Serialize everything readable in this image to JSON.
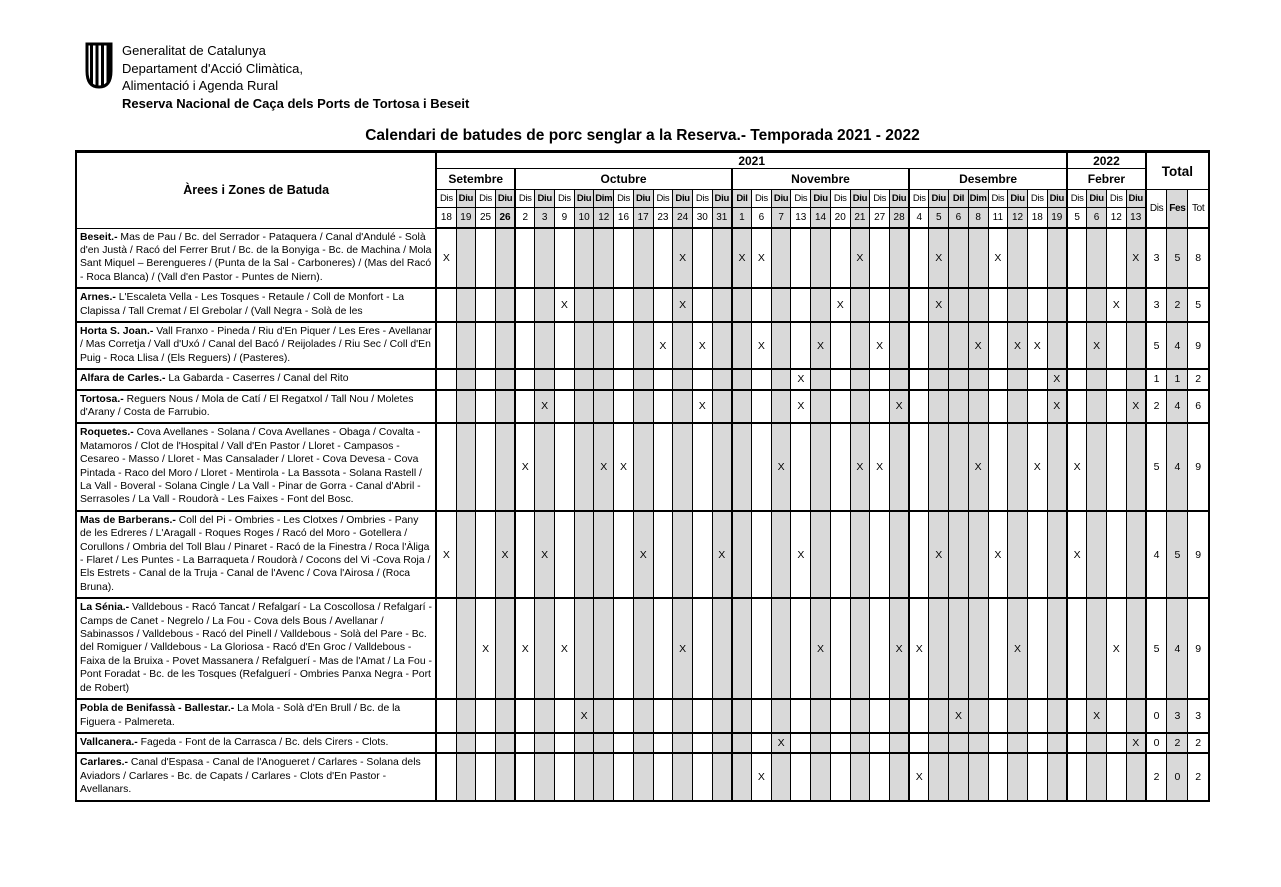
{
  "header": {
    "logo": "generalitat-de-catalunya-senyera-shield",
    "org_lines": [
      "Generalitat de Catalunya",
      "Departament d'Acció Climàtica,",
      "Alimentació i Agenda Rural"
    ],
    "org_bold_line": "Reserva Nacional de Caça dels Ports de Tortosa i Beseit"
  },
  "title": "Calendari de batudes de porc senglar a la Reserva.- Temporada 2021 - 2022",
  "colors": {
    "page_bg": "#ffffff",
    "text": "#000000",
    "grid_line": "#000000",
    "festiu_fill": "#d9d9d9"
  },
  "table": {
    "area_header": "Àrees i Zones de Batuda",
    "total_label": "Total",
    "total_cols": [
      "Dis",
      "Fes",
      "Tot"
    ],
    "mark": "X",
    "months": [
      {
        "name": "Setembre",
        "year": "2021",
        "days": [
          {
            "dow": "Dis",
            "date": "18",
            "festiu": false
          },
          {
            "dow": "Diu",
            "date": "19",
            "festiu": true
          },
          {
            "dow": "Dis",
            "date": "25",
            "festiu": false
          },
          {
            "dow": "Diu",
            "date": "26",
            "festiu": true,
            "bold_date": true
          }
        ]
      },
      {
        "name": "Octubre",
        "year": "2021",
        "days": [
          {
            "dow": "Dis",
            "date": "2",
            "festiu": false
          },
          {
            "dow": "Diu",
            "date": "3",
            "festiu": true
          },
          {
            "dow": "Dis",
            "date": "9",
            "festiu": false
          },
          {
            "dow": "Diu",
            "date": "10",
            "festiu": true
          },
          {
            "dow": "Dim",
            "date": "12",
            "festiu": true
          },
          {
            "dow": "Dis",
            "date": "16",
            "festiu": false
          },
          {
            "dow": "Diu",
            "date": "17",
            "festiu": true
          },
          {
            "dow": "Dis",
            "date": "23",
            "festiu": false
          },
          {
            "dow": "Diu",
            "date": "24",
            "festiu": true
          },
          {
            "dow": "Dis",
            "date": "30",
            "festiu": false
          },
          {
            "dow": "Diu",
            "date": "31",
            "festiu": true
          }
        ]
      },
      {
        "name": "Novembre",
        "year": "2021",
        "days": [
          {
            "dow": "Dil",
            "date": "1",
            "festiu": true
          },
          {
            "dow": "Dis",
            "date": "6",
            "festiu": false
          },
          {
            "dow": "Diu",
            "date": "7",
            "festiu": true
          },
          {
            "dow": "Dis",
            "date": "13",
            "festiu": false
          },
          {
            "dow": "Diu",
            "date": "14",
            "festiu": true
          },
          {
            "dow": "Dis",
            "date": "20",
            "festiu": false
          },
          {
            "dow": "Diu",
            "date": "21",
            "festiu": true
          },
          {
            "dow": "Dis",
            "date": "27",
            "festiu": false
          },
          {
            "dow": "Diu",
            "date": "28",
            "festiu": true
          }
        ]
      },
      {
        "name": "Desembre",
        "year": "2021",
        "days": [
          {
            "dow": "Dis",
            "date": "4",
            "festiu": false
          },
          {
            "dow": "Diu",
            "date": "5",
            "festiu": true
          },
          {
            "dow": "Dil",
            "date": "6",
            "festiu": true
          },
          {
            "dow": "Dim",
            "date": "8",
            "festiu": true
          },
          {
            "dow": "Dis",
            "date": "11",
            "festiu": false
          },
          {
            "dow": "Diu",
            "date": "12",
            "festiu": true
          },
          {
            "dow": "Dis",
            "date": "18",
            "festiu": false
          },
          {
            "dow": "Diu",
            "date": "19",
            "festiu": true
          }
        ]
      },
      {
        "name": "Febrer",
        "year": "2022",
        "days": [
          {
            "dow": "Dis",
            "date": "5",
            "festiu": false
          },
          {
            "dow": "Diu",
            "date": "6",
            "festiu": true
          },
          {
            "dow": "Dis",
            "date": "12",
            "festiu": false
          },
          {
            "dow": "Diu",
            "date": "13",
            "festiu": true
          }
        ]
      }
    ],
    "rows": [
      {
        "name": "Beseit.-",
        "desc": "Mas de Pau / Bc. del Serrador - Pataquera / Canal d'Andulé - Solà d'en Justà / Racó del Ferrer Brut / Bc. de la Bonyiga - Bc. de Machina / Mola Sant Miquel – Berengueres / (Punta de la Sal - Carboneres) / (Mas del Racó - Roca Blanca) / (Vall d'en  Pastor - Puntes de Niern).",
        "marks": [
          0,
          12,
          15,
          16,
          21,
          25,
          28,
          35
        ],
        "totals": [
          "3",
          "5",
          "8"
        ]
      },
      {
        "name": "Arnes.-",
        "desc": "L'Escaleta Vella - Les Tosques - Retaule / Coll de Monfort - La Clapissa / Tall Cremat / El Grebolar / (Vall Negra - Solà de les",
        "marks": [
          6,
          12,
          20,
          25,
          34
        ],
        "totals": [
          "3",
          "2",
          "5"
        ]
      },
      {
        "name": "Horta S. Joan.-",
        "desc": "Vall Franxo - Pineda / Riu d'En Piquer / Les Eres - Avellanar / Mas Corretja / Vall d'Uxó / Canal del Bacó / Reijolades / Riu Sec / Coll d'En Puig - Roca Llisa / (Els Reguers) / (Pasteres).",
        "marks": [
          11,
          13,
          16,
          19,
          22,
          27,
          29,
          30,
          33
        ],
        "totals": [
          "5",
          "4",
          "9"
        ]
      },
      {
        "name": "Alfara de Carles.-",
        "desc": "La Gabarda - Caserres / Canal del Rito",
        "marks": [
          18,
          31
        ],
        "totals": [
          "1",
          "1",
          "2"
        ]
      },
      {
        "name": "Tortosa.-",
        "desc": "Reguers Nous / Mola de Catí / El Regatxol / Tall Nou / Moletes d'Arany / Costa de Farrubio.",
        "marks": [
          5,
          13,
          18,
          23,
          31,
          35
        ],
        "totals": [
          "2",
          "4",
          "6"
        ]
      },
      {
        "name": "Roquetes.-",
        "desc": "Cova Avellanes - Solana / Cova Avellanes - Obaga / Covalta - Matamoros / Clot de l'Hospital / Vall d'En Pastor / Lloret - Campasos - Cesareo - Masso / Lloret - Mas Cansalader / Lloret - Cova Devesa - Cova Pintada - Raco del Moro / Lloret - Mentirola - La Bassota - Solana Rastell / La Vall - Boveral - Solana Cingle / La Vall - Pinar de Gorra - Canal d'Abril - Serrasoles / La Vall - Roudorà - Les Faixes - Font del Bosc.",
        "marks": [
          4,
          8,
          9,
          17,
          21,
          22,
          27,
          30,
          32
        ],
        "totals": [
          "5",
          "4",
          "9"
        ]
      },
      {
        "name": "Mas de Barberans.-",
        "desc": "Coll del Pi - Ombries - Les Clotxes / Ombries - Pany de les Edreres / L'Aragall - Roques Roges / Racó del Moro - Gotellera / Corullons / Ombria  del Toll Blau / Pinaret - Racó de la Finestra / Roca l'Àliga - Flaret / Les Puntes - La Barraqueta / Roudorà / Cocons del Vi -Cova Roja / Els Estrets - Canal de la Truja - Canal de l'Avenc / Cova l'Airosa / (Roca Bruna).",
        "marks": [
          0,
          3,
          5,
          10,
          14,
          18,
          25,
          28,
          32
        ],
        "totals": [
          "4",
          "5",
          "9"
        ]
      },
      {
        "name": "La Sénia.-",
        "desc": "Valldebous - Racó Tancat / Refalgarí - La Coscollosa / Refalgarí - Camps de Canet - Negrelo / La Fou - Cova dels Bous / Avellanar / Sabinassos /  Valldebous - Racó del  Pinell / Valldebous - Solà del Pare - Bc. del Romiguer / Valldebous - La Gloriosa - Racó d'En Groc / Valldebous - Faixa de la Bruixa - Povet Massanera / Refalguerí - Mas de l'Amat / La Fou - Pont Foradat - Bc. de les Tosques (Refalguerí - Ombries Panxa Negra - Port de Robert)",
        "marks": [
          2,
          4,
          6,
          12,
          19,
          23,
          24,
          29,
          34
        ],
        "totals": [
          "5",
          "4",
          "9"
        ]
      },
      {
        "name": "Pobla de Benifassà - Ballestar.-",
        "desc": "La Mola - Solà d'En Brull / Bc. de la Figuera - Palmereta.",
        "marks": [
          7,
          26,
          33
        ],
        "totals": [
          "0",
          "3",
          "3"
        ]
      },
      {
        "name": "Vallcanera.-",
        "desc": "Fageda - Font de la Carrasca / Bc. dels Cirers - Clots.",
        "marks": [
          17,
          35
        ],
        "totals": [
          "0",
          "2",
          "2"
        ]
      },
      {
        "name": "Carlares.-",
        "desc": "Canal d'Espasa - Canal de l'Anogueret / Carlares - Solana dels Aviadors / Carlares - Bc. de Capats / Carlares - Clots d'En Pastor - Avellanars.",
        "marks": [
          16,
          24
        ],
        "totals": [
          "2",
          "0",
          "2"
        ]
      }
    ]
  }
}
